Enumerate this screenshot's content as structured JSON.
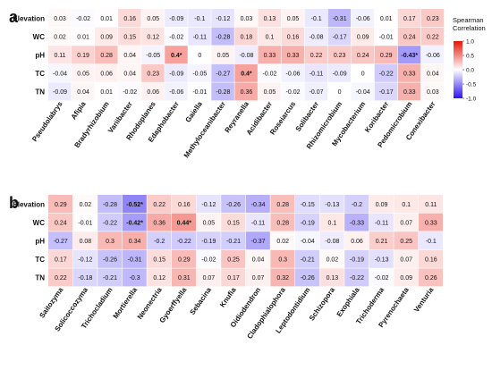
{
  "colors": {
    "neg_strong": "#2a14f0",
    "zero": "#ffffff",
    "pos_strong": "#e81408"
  },
  "legend": {
    "title_line1": "Spearman",
    "title_line2": "Correlation",
    "ticks": [
      "1.0",
      "0.5",
      "0.0",
      "-0.5",
      "-1.0"
    ],
    "tick_values": [
      1.0,
      0.5,
      0.0,
      -0.5,
      -1.0
    ]
  },
  "chart_data": [
    {
      "type": "heatmap",
      "panel_label": "a",
      "rows": [
        "Elevation",
        "WC",
        "pH",
        "TC",
        "TN"
      ],
      "columns": [
        "Pseudolabrys",
        "Afipia",
        "Bradyrhizobium",
        "Variibacter",
        "Rhodoplanes",
        "Edaphobacter",
        "Gaiella",
        "Methyloceanibacter",
        "Reyranella",
        "Acidibacter",
        "Roseiarcus",
        "Solibacter",
        "Rhizomicrobium",
        "Mycobacterium",
        "Koribacter",
        "Pedomicrobium",
        "Conexibacter"
      ],
      "values": [
        [
          0.03,
          -0.02,
          0.01,
          0.16,
          0.05,
          -0.09,
          -0.1,
          -0.12,
          0.03,
          0.13,
          0.05,
          -0.1,
          -0.31,
          -0.06,
          0.01,
          0.17,
          0.23
        ],
        [
          0.02,
          0.01,
          0.09,
          0.15,
          0.12,
          -0.02,
          -0.11,
          -0.28,
          0.18,
          0.1,
          0.16,
          -0.08,
          -0.17,
          0.09,
          -0.01,
          0.24,
          0.22
        ],
        [
          0.11,
          0.19,
          0.28,
          0.04,
          -0.05,
          0.4,
          0,
          0.05,
          -0.08,
          0.33,
          0.33,
          0.22,
          0.23,
          0.24,
          0.29,
          -0.43,
          -0.06
        ],
        [
          -0.04,
          0.05,
          0.06,
          0.04,
          0.23,
          -0.09,
          -0.05,
          -0.27,
          0.4,
          -0.02,
          -0.06,
          -0.11,
          -0.09,
          0,
          -0.22,
          0.33,
          0.04
        ],
        [
          -0.09,
          0.04,
          0.01,
          -0.02,
          0.06,
          -0.06,
          -0.01,
          -0.28,
          0.36,
          0.05,
          -0.02,
          -0.07,
          0,
          -0.04,
          -0.17,
          0.33,
          0.03
        ]
      ],
      "labels": [
        [
          "0.03",
          "-0.02",
          "0.01",
          "0.16",
          "0.05",
          "-0.09",
          "-0.1",
          "-0.12",
          "0.03",
          "0.13",
          "0.05",
          "-0.1",
          "-0.31",
          "-0.06",
          "0.01",
          "0.17",
          "0.23"
        ],
        [
          "0.02",
          "0.01",
          "0.09",
          "0.15",
          "0.12",
          "-0.02",
          "-0.11",
          "-0.28",
          "0.18",
          "0.1",
          "0.16",
          "-0.08",
          "-0.17",
          "0.09",
          "-0.01",
          "0.24",
          "0.22"
        ],
        [
          "0.11",
          "0.19",
          "0.28",
          "0.04",
          "-0.05",
          "0.4*",
          "0",
          "0.05",
          "-0.08",
          "0.33",
          "0.33",
          "0.22",
          "0.23",
          "0.24",
          "0.29",
          "-0.43*",
          "-0.06"
        ],
        [
          "-0.04",
          "0.05",
          "0.06",
          "0.04",
          "0.23",
          "-0.09",
          "-0.05",
          "-0.27",
          "0.4*",
          "-0.02",
          "-0.06",
          "-0.11",
          "-0.09",
          "0",
          "-0.22",
          "0.33",
          "0.04"
        ],
        [
          "-0.09",
          "0.04",
          "0.01",
          "-0.02",
          "0.06",
          "-0.06",
          "-0.01",
          "-0.28",
          "0.36",
          "0.05",
          "-0.02",
          "-0.07",
          "0",
          "-0.04",
          "-0.17",
          "0.33",
          "0.03"
        ]
      ],
      "scale": [
        -1.0,
        1.0
      ]
    },
    {
      "type": "heatmap",
      "panel_label": "b",
      "rows": [
        "Elevation",
        "WC",
        "pH",
        "TC",
        "TN"
      ],
      "columns": [
        "Saitozyma",
        "Solicoccozyma",
        "Trichocladium",
        "Mortierella",
        "Neonectria",
        "Gyoerffyella",
        "Sebacina",
        "Knufia",
        "Oidiodendron",
        "Cladophialophora",
        "Leptodontidium",
        "Schizopora",
        "Exophiala",
        "Trichoderma",
        "Pyrenochaeta",
        "Venturia"
      ],
      "values": [
        [
          0.29,
          0.02,
          -0.28,
          -0.52,
          0.22,
          0.16,
          -0.12,
          -0.26,
          -0.34,
          0.28,
          -0.15,
          -0.13,
          -0.2,
          0.09,
          0.1,
          0.11
        ],
        [
          0.24,
          -0.01,
          -0.22,
          -0.42,
          0.36,
          0.44,
          0.05,
          0.15,
          -0.11,
          0.28,
          -0.19,
          0.1,
          -0.33,
          -0.11,
          0.07,
          0.33
        ],
        [
          -0.27,
          0.08,
          0.3,
          0.34,
          -0.2,
          -0.22,
          -0.19,
          -0.21,
          -0.37,
          0.02,
          -0.04,
          -0.08,
          0.06,
          0.21,
          0.25,
          -0.1
        ],
        [
          0.17,
          -0.12,
          -0.26,
          -0.31,
          0.15,
          0.29,
          -0.02,
          0.25,
          0.04,
          0.3,
          -0.21,
          0.02,
          -0.19,
          -0.13,
          0.07,
          0.16
        ],
        [
          0.22,
          -0.18,
          -0.21,
          -0.3,
          0.12,
          0.31,
          0.07,
          0.17,
          0.07,
          0.32,
          -0.26,
          0.13,
          -0.22,
          -0.02,
          0.09,
          0.26
        ]
      ],
      "labels": [
        [
          "0.29",
          "0.02",
          "-0.28",
          "-0.52*",
          "0.22",
          "0.16",
          "-0.12",
          "-0.26",
          "-0.34",
          "0.28",
          "-0.15",
          "-0.13",
          "-0.2",
          "0.09",
          "0.1",
          "0.11"
        ],
        [
          "0.24",
          "-0.01",
          "-0.22",
          "-0.42*",
          "0.36",
          "0.44*",
          "0.05",
          "0.15",
          "-0.11",
          "0.28",
          "-0.19",
          "0.1",
          "-0.33",
          "-0.11",
          "0.07",
          "0.33"
        ],
        [
          "-0.27",
          "0.08",
          "0.3",
          "0.34",
          "-0.2",
          "-0.22",
          "-0.19",
          "-0.21",
          "-0.37",
          "0.02",
          "-0.04",
          "-0.08",
          "0.06",
          "0.21",
          "0.25",
          "-0.1"
        ],
        [
          "0.17",
          "-0.12",
          "-0.26",
          "-0.31",
          "0.15",
          "0.29",
          "-0.02",
          "0.25",
          "0.04",
          "0.3",
          "-0.21",
          "0.02",
          "-0.19",
          "-0.13",
          "0.07",
          "0.16"
        ],
        [
          "0.22",
          "-0.18",
          "-0.21",
          "-0.3",
          "0.12",
          "0.31",
          "0.07",
          "0.17",
          "0.07",
          "0.32",
          "-0.26",
          "0.13",
          "-0.22",
          "-0.02",
          "0.09",
          "0.26"
        ]
      ],
      "scale": [
        -1.0,
        1.0
      ]
    }
  ]
}
